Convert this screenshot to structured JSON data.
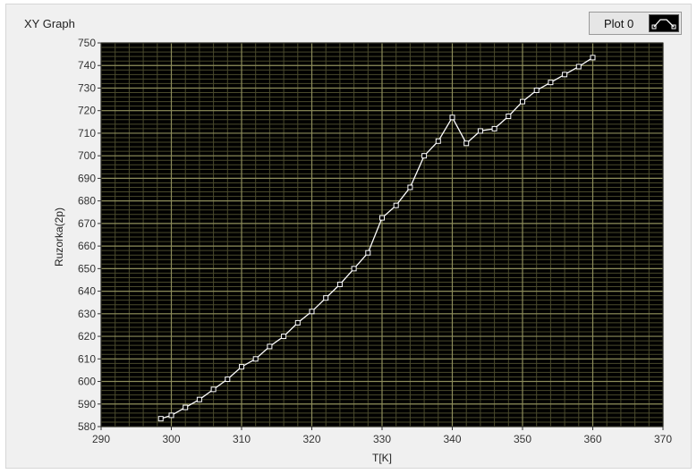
{
  "window": {
    "title": "XY Graph",
    "legend_label": "Plot 0",
    "legend_icon": "line-with-square-markers-icon"
  },
  "colors": {
    "plot_background": "#000000",
    "minor_grid": "#4a4a2c",
    "major_grid": "#8c8c5a",
    "series_line": "#ffffff",
    "panel": "#f0f0f0"
  },
  "chart_data": {
    "type": "line",
    "title": "XY Graph",
    "xlabel": "T[K]",
    "ylabel": "Ruzorka(2p)",
    "xlim": [
      290,
      370
    ],
    "ylim": [
      580,
      750
    ],
    "x_ticks": [
      290,
      300,
      310,
      320,
      330,
      340,
      350,
      360,
      370
    ],
    "y_ticks": [
      580,
      590,
      600,
      610,
      620,
      630,
      640,
      650,
      660,
      670,
      680,
      690,
      700,
      710,
      720,
      730,
      740,
      750
    ],
    "grid": true,
    "legend": "top-right",
    "series": [
      {
        "name": "Plot 0",
        "x": [
          298.5,
          300,
          302,
          304,
          306,
          308,
          310,
          312,
          314,
          316,
          318,
          320,
          322,
          324,
          326,
          328,
          330,
          332,
          334,
          336,
          338,
          340,
          342,
          344,
          346,
          348,
          350,
          352,
          354,
          356,
          358,
          360
        ],
        "y": [
          583.5,
          585,
          588.5,
          592,
          596.5,
          601,
          606.5,
          610,
          615.5,
          620,
          626,
          631,
          637,
          643,
          650,
          657,
          672.5,
          678,
          686,
          700,
          706.5,
          717,
          705.5,
          711,
          712,
          717.5,
          724,
          729,
          732.5,
          736,
          739.5,
          743.5
        ]
      }
    ]
  }
}
